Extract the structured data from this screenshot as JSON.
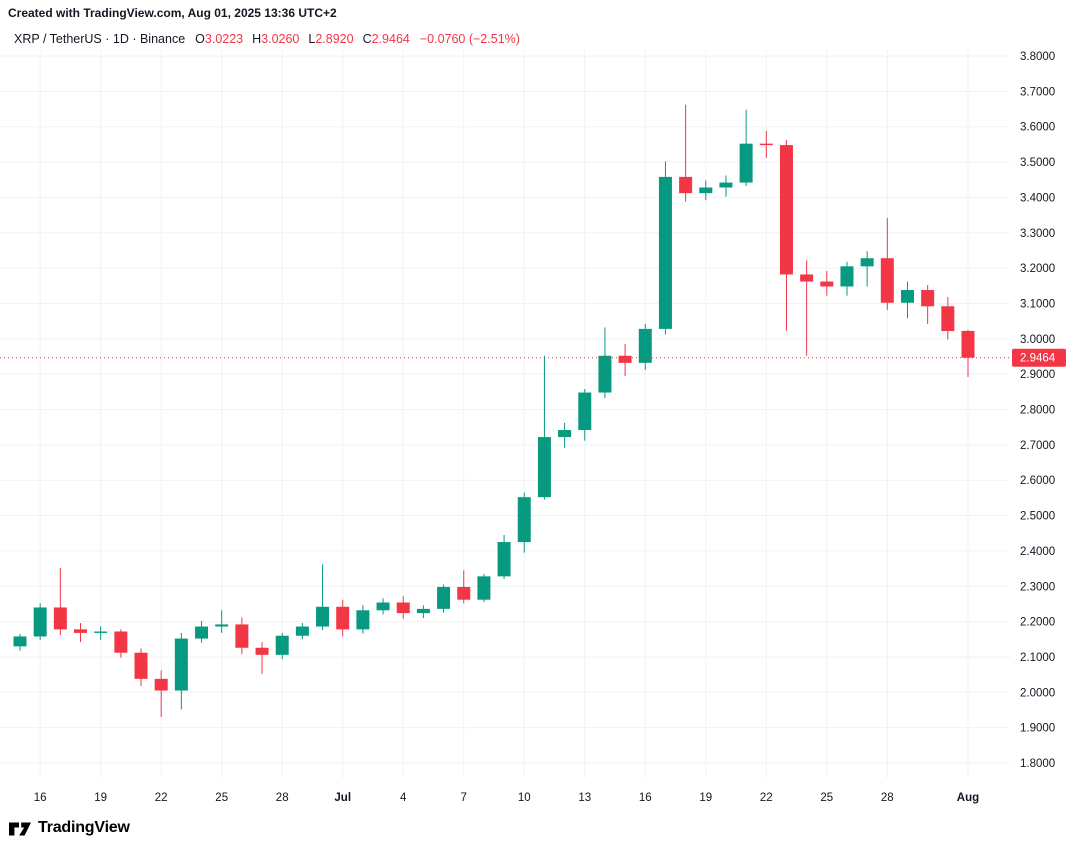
{
  "header": {
    "attribution": "Created with TradingView.com, Aug 01, 2025 13:36 UTC+2"
  },
  "legend": {
    "title": "XRP / TetherUS · 1D · Binance",
    "ohlc": [
      {
        "label": "O",
        "value": "3.0223"
      },
      {
        "label": "H",
        "value": "3.0260"
      },
      {
        "label": "L",
        "value": "2.8920"
      },
      {
        "label": "C",
        "value": "2.9464"
      }
    ],
    "change": "−0.0760 (−2.51%)"
  },
  "price_scale": {
    "labels": [
      "3.8000",
      "3.7000",
      "3.6000",
      "3.5000",
      "3.4000",
      "3.3000",
      "3.2000",
      "3.1000",
      "3.0000",
      "2.9000",
      "2.8000",
      "2.7000",
      "2.6000",
      "2.5000",
      "2.4000",
      "2.3000",
      "2.2000",
      "2.1000",
      "2.0000",
      "1.9000",
      "1.8000"
    ],
    "last_price": "2.9464"
  },
  "time_scale": {
    "ticks": [
      {
        "i": 1,
        "label": "16",
        "bold": false
      },
      {
        "i": 4,
        "label": "19",
        "bold": false
      },
      {
        "i": 7,
        "label": "22",
        "bold": false
      },
      {
        "i": 10,
        "label": "25",
        "bold": false
      },
      {
        "i": 13,
        "label": "28",
        "bold": false
      },
      {
        "i": 16,
        "label": "Jul",
        "bold": true
      },
      {
        "i": 19,
        "label": "4",
        "bold": false
      },
      {
        "i": 22,
        "label": "7",
        "bold": false
      },
      {
        "i": 25,
        "label": "10",
        "bold": false
      },
      {
        "i": 28,
        "label": "13",
        "bold": false
      },
      {
        "i": 31,
        "label": "16",
        "bold": false
      },
      {
        "i": 34,
        "label": "19",
        "bold": false
      },
      {
        "i": 37,
        "label": "22",
        "bold": false
      },
      {
        "i": 40,
        "label": "25",
        "bold": false
      },
      {
        "i": 43,
        "label": "28",
        "bold": false
      },
      {
        "i": 47,
        "label": "Aug",
        "bold": true
      }
    ]
  },
  "footer": {
    "brand": "TradingView"
  },
  "colors": {
    "up": "#089981",
    "down": "#f23645",
    "grid": "#eff2f6",
    "text": "#131722",
    "tag_bg": "#f23645",
    "tag_text": "#ffffff",
    "background": "#ffffff"
  },
  "chart_data": {
    "type": "candlestick",
    "title": "XRP / TetherUS · 1D · Binance",
    "symbol": "XRP / TetherUS",
    "interval": "1D",
    "exchange": "Binance",
    "ylim": [
      1.8,
      3.8
    ],
    "price_step": 0.1,
    "grid": true,
    "last_price": 2.9464,
    "last_change": "−0.0760 (−2.51%)",
    "candles": [
      {
        "date": "Jun 15",
        "o": 2.13,
        "h": 2.165,
        "l": 2.118,
        "c": 2.158
      },
      {
        "date": "Jun 16",
        "o": 2.158,
        "h": 2.252,
        "l": 2.148,
        "c": 2.24
      },
      {
        "date": "Jun 17",
        "o": 2.24,
        "h": 2.352,
        "l": 2.162,
        "c": 2.178
      },
      {
        "date": "Jun 18",
        "o": 2.178,
        "h": 2.196,
        "l": 2.142,
        "c": 2.168
      },
      {
        "date": "Jun 19",
        "o": 2.168,
        "h": 2.186,
        "l": 2.148,
        "c": 2.172
      },
      {
        "date": "Jun 20",
        "o": 2.172,
        "h": 2.178,
        "l": 2.098,
        "c": 2.112
      },
      {
        "date": "Jun 21",
        "o": 2.112,
        "h": 2.124,
        "l": 2.018,
        "c": 2.038
      },
      {
        "date": "Jun 22",
        "o": 2.038,
        "h": 2.062,
        "l": 1.93,
        "c": 2.005
      },
      {
        "date": "Jun 23",
        "o": 2.005,
        "h": 2.168,
        "l": 1.952,
        "c": 2.152
      },
      {
        "date": "Jun 24",
        "o": 2.152,
        "h": 2.202,
        "l": 2.14,
        "c": 2.186
      },
      {
        "date": "Jun 25",
        "o": 2.186,
        "h": 2.232,
        "l": 2.168,
        "c": 2.192
      },
      {
        "date": "Jun 26",
        "o": 2.192,
        "h": 2.212,
        "l": 2.108,
        "c": 2.126
      },
      {
        "date": "Jun 27",
        "o": 2.126,
        "h": 2.142,
        "l": 2.052,
        "c": 2.106
      },
      {
        "date": "Jun 28",
        "o": 2.106,
        "h": 2.168,
        "l": 2.094,
        "c": 2.16
      },
      {
        "date": "Jun 29",
        "o": 2.16,
        "h": 2.196,
        "l": 2.15,
        "c": 2.186
      },
      {
        "date": "Jun 30",
        "o": 2.186,
        "h": 2.362,
        "l": 2.176,
        "c": 2.242
      },
      {
        "date": "Jul 1",
        "o": 2.242,
        "h": 2.262,
        "l": 2.158,
        "c": 2.178
      },
      {
        "date": "Jul 2",
        "o": 2.178,
        "h": 2.246,
        "l": 2.166,
        "c": 2.232
      },
      {
        "date": "Jul 3",
        "o": 2.232,
        "h": 2.266,
        "l": 2.22,
        "c": 2.254
      },
      {
        "date": "Jul 4",
        "o": 2.254,
        "h": 2.272,
        "l": 2.208,
        "c": 2.224
      },
      {
        "date": "Jul 5",
        "o": 2.224,
        "h": 2.246,
        "l": 2.21,
        "c": 2.236
      },
      {
        "date": "Jul 6",
        "o": 2.236,
        "h": 2.305,
        "l": 2.225,
        "c": 2.298
      },
      {
        "date": "Jul 7",
        "o": 2.298,
        "h": 2.345,
        "l": 2.252,
        "c": 2.262
      },
      {
        "date": "Jul 8",
        "o": 2.262,
        "h": 2.335,
        "l": 2.255,
        "c": 2.328
      },
      {
        "date": "Jul 9",
        "o": 2.328,
        "h": 2.445,
        "l": 2.32,
        "c": 2.425
      },
      {
        "date": "Jul 10",
        "o": 2.425,
        "h": 2.565,
        "l": 2.395,
        "c": 2.552
      },
      {
        "date": "Jul 11",
        "o": 2.552,
        "h": 2.952,
        "l": 2.545,
        "c": 2.722
      },
      {
        "date": "Jul 12",
        "o": 2.722,
        "h": 2.762,
        "l": 2.692,
        "c": 2.742
      },
      {
        "date": "Jul 13",
        "o": 2.742,
        "h": 2.858,
        "l": 2.712,
        "c": 2.848
      },
      {
        "date": "Jul 14",
        "o": 2.848,
        "h": 3.032,
        "l": 2.832,
        "c": 2.952
      },
      {
        "date": "Jul 15",
        "o": 2.952,
        "h": 2.985,
        "l": 2.895,
        "c": 2.932
      },
      {
        "date": "Jul 16",
        "o": 2.932,
        "h": 3.042,
        "l": 2.912,
        "c": 3.028
      },
      {
        "date": "Jul 17",
        "o": 3.028,
        "h": 3.502,
        "l": 3.012,
        "c": 3.458
      },
      {
        "date": "Jul 18",
        "o": 3.458,
        "h": 3.662,
        "l": 3.388,
        "c": 3.412
      },
      {
        "date": "Jul 19",
        "o": 3.412,
        "h": 3.448,
        "l": 3.392,
        "c": 3.428
      },
      {
        "date": "Jul 20",
        "o": 3.428,
        "h": 3.462,
        "l": 3.402,
        "c": 3.442
      },
      {
        "date": "Jul 21",
        "o": 3.442,
        "h": 3.648,
        "l": 3.432,
        "c": 3.552
      },
      {
        "date": "Jul 22",
        "o": 3.552,
        "h": 3.588,
        "l": 3.512,
        "c": 3.548
      },
      {
        "date": "Jul 23",
        "o": 3.548,
        "h": 3.562,
        "l": 3.022,
        "c": 3.182
      },
      {
        "date": "Jul 24",
        "o": 3.182,
        "h": 3.222,
        "l": 2.952,
        "c": 3.162
      },
      {
        "date": "Jul 25",
        "o": 3.162,
        "h": 3.192,
        "l": 3.122,
        "c": 3.148
      },
      {
        "date": "Jul 26",
        "o": 3.148,
        "h": 3.218,
        "l": 3.122,
        "c": 3.205
      },
      {
        "date": "Jul 27",
        "o": 3.205,
        "h": 3.248,
        "l": 3.148,
        "c": 3.228
      },
      {
        "date": "Jul 28",
        "o": 3.228,
        "h": 3.342,
        "l": 3.082,
        "c": 3.102
      },
      {
        "date": "Jul 29",
        "o": 3.102,
        "h": 3.162,
        "l": 3.058,
        "c": 3.138
      },
      {
        "date": "Jul 30",
        "o": 3.138,
        "h": 3.152,
        "l": 3.042,
        "c": 3.092
      },
      {
        "date": "Jul 31",
        "o": 3.092,
        "h": 3.118,
        "l": 2.998,
        "c": 3.022
      },
      {
        "date": "Aug 1",
        "o": 3.0223,
        "h": 3.026,
        "l": 2.892,
        "c": 2.9464
      }
    ]
  }
}
